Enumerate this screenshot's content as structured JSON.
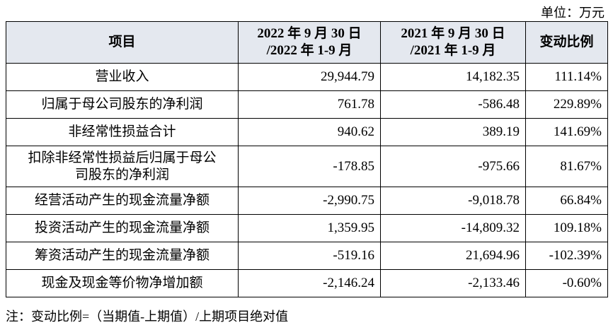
{
  "unit": "单位：万元",
  "table": {
    "header": [
      [
        "项目"
      ],
      [
        "2022 年 9 月 30 日",
        "/2022 年 1-9 月"
      ],
      [
        "2021 年 9 月 30 日",
        "/2021 年 1-9 月"
      ],
      [
        "变动比例"
      ]
    ],
    "rows": [
      [
        [
          "营业收入"
        ],
        "29,944.79",
        "14,182.35",
        "111.14%"
      ],
      [
        [
          "归属于母公司股东的净利润"
        ],
        "761.78",
        "-586.48",
        "229.89%"
      ],
      [
        [
          "非经常性损益合计"
        ],
        "940.62",
        "389.19",
        "141.69%"
      ],
      [
        [
          "扣除非经常性损益后归属于母公",
          "司股东的净利润"
        ],
        "-178.85",
        "-975.66",
        "81.67%"
      ],
      [
        [
          "经营活动产生的现金流量净额"
        ],
        "-2,990.75",
        "-9,018.78",
        "66.84%"
      ],
      [
        [
          "投资活动产生的现金流量净额"
        ],
        "1,359.95",
        "-14,809.32",
        "109.18%"
      ],
      [
        [
          "筹资活动产生的现金流量净额"
        ],
        "-519.16",
        "21,694.96",
        "-102.39%"
      ],
      [
        [
          "现金及现金等价物净增加额"
        ],
        "-2,146.24",
        "-2,133.46",
        "-0.60%"
      ]
    ]
  },
  "note": "注：变动比例=（当期值-上期值）/上期项目绝对值"
}
